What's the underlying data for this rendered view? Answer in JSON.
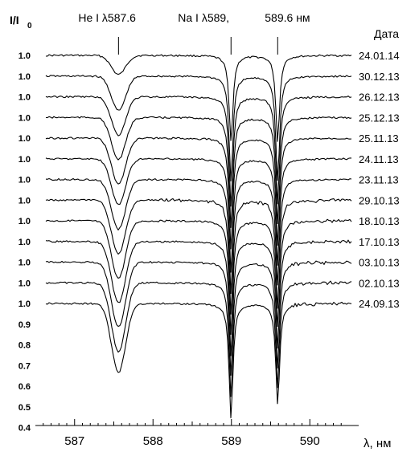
{
  "chart_data": {
    "type": "line",
    "ylabel_main": "I/I",
    "ylabel_sub": "0",
    "xlabel": "λ, нм",
    "xlim": [
      586.5,
      590.5
    ],
    "x_ticks": [
      "587",
      "588",
      "589",
      "590"
    ],
    "y_tick_labels": [
      "1.0",
      "1.0",
      "1.0",
      "1.0",
      "1.0",
      "1.0",
      "1.0",
      "1.0",
      "1.0",
      "1.0",
      "1.0",
      "1.0",
      "1.0",
      "0.9",
      "0.8",
      "0.7",
      "0.6",
      "0.5",
      "0.4"
    ],
    "line_annotations": [
      {
        "label": "He I λ587.6",
        "x": 587.56
      },
      {
        "label": "Na I λ589,",
        "x": 588.995
      },
      {
        "label": "589.6 нм",
        "x": 589.59
      }
    ],
    "legend_title": "Дата",
    "lines": {
      "He": {
        "center": 587.56,
        "width": 0.09
      },
      "Na1": {
        "center": 588.995,
        "width": 0.03
      },
      "Na2": {
        "center": 589.59,
        "width": 0.03
      }
    },
    "series": [
      {
        "name": "24.01.14",
        "depth_He": 0.1,
        "depth_Na1": 0.45,
        "depth_Na2": 0.45
      },
      {
        "name": "30.12.13",
        "depth_He": 0.18,
        "depth_Na1": 0.55,
        "depth_Na2": 0.55
      },
      {
        "name": "26.12.13",
        "depth_He": 0.2,
        "depth_Na1": 0.58,
        "depth_Na2": 0.56
      },
      {
        "name": "25.12.13",
        "depth_He": 0.22,
        "depth_Na1": 0.58,
        "depth_Na2": 0.56
      },
      {
        "name": "25.11.13",
        "depth_He": 0.24,
        "depth_Na1": 0.58,
        "depth_Na2": 0.56
      },
      {
        "name": "24.11.13",
        "depth_He": 0.24,
        "depth_Na1": 0.6,
        "depth_Na2": 0.56
      },
      {
        "name": "23.11.13",
        "depth_He": 0.26,
        "depth_Na1": 0.6,
        "depth_Na2": 0.56
      },
      {
        "name": "29.10.13",
        "depth_He": 0.28,
        "depth_Na1": 0.6,
        "depth_Na2": 0.56
      },
      {
        "name": "18.10.13",
        "depth_He": 0.3,
        "depth_Na1": 0.6,
        "depth_Na2": 0.56
      },
      {
        "name": "17.10.13",
        "depth_He": 0.32,
        "depth_Na1": 0.6,
        "depth_Na2": 0.56
      },
      {
        "name": "03.10.13",
        "depth_He": 0.34,
        "depth_Na1": 0.6,
        "depth_Na2": 0.56
      },
      {
        "name": "02.10.13",
        "depth_He": 0.36,
        "depth_Na1": 0.6,
        "depth_Na2": 0.55
      },
      {
        "name": "24.09.13",
        "depth_He": 0.36,
        "depth_Na1": 0.6,
        "depth_Na2": 0.53
      }
    ]
  }
}
